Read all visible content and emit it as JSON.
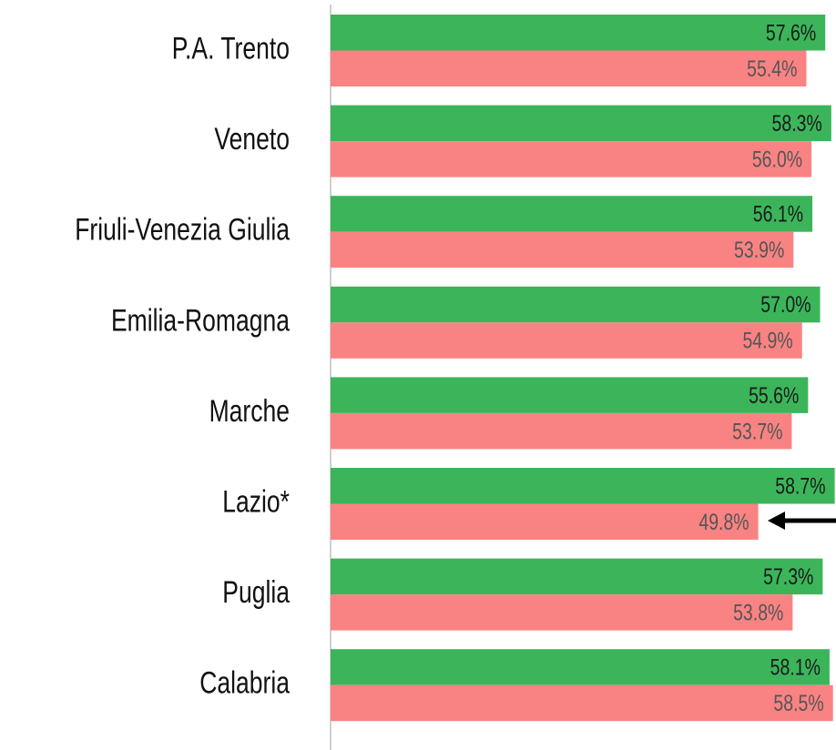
{
  "chart_data": {
    "type": "bar",
    "orientation": "horizontal",
    "categories": [
      "P.A. Trento",
      "Veneto",
      "Friuli-Venezia Giulia",
      "Emilia-Romagna",
      "Marche",
      "Lazio*",
      "Puglia",
      "Calabria"
    ],
    "series": [
      {
        "color": "#3cb55a",
        "values": [
          57.6,
          58.3,
          56.1,
          57.0,
          55.6,
          58.7,
          57.3,
          58.1
        ],
        "value_labels": [
          "57.6%",
          "58.3%",
          "56.1%",
          "57.0%",
          "55.6%",
          "58.7%",
          "57.3%",
          "58.1%"
        ]
      },
      {
        "color": "#f98383",
        "values": [
          55.4,
          56.0,
          53.9,
          54.9,
          53.7,
          49.8,
          53.8,
          58.5
        ],
        "value_labels": [
          "55.4%",
          "56.0%",
          "53.9%",
          "54.9%",
          "53.7%",
          "49.8%",
          "53.8%",
          "58.5%"
        ]
      }
    ],
    "xlim": [
      0,
      58.85
    ]
  }
}
